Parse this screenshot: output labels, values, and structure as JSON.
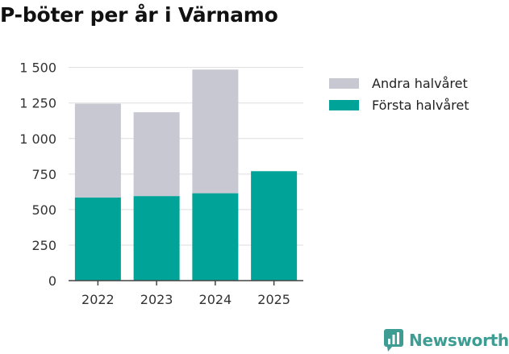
{
  "chart_data": {
    "type": "bar",
    "stacked": true,
    "title": "P-böter per år i Värnamo",
    "xlabel": "",
    "ylabel": "",
    "categories": [
      "2022",
      "2023",
      "2024",
      "2025"
    ],
    "series": [
      {
        "name": "Första halvåret",
        "color": "#00a398",
        "values": [
          585,
          595,
          615,
          770
        ]
      },
      {
        "name": "Andra halvåret",
        "color": "#c8c8d2",
        "values": [
          660,
          590,
          870,
          null
        ]
      }
    ],
    "ylim": [
      0,
      1600
    ],
    "yticks": [
      0,
      250,
      500,
      750,
      1000,
      1250,
      1500
    ],
    "ytick_labels": [
      "0",
      "250",
      "500",
      "750",
      "1 000",
      "1 250",
      "1 500"
    ],
    "grid": true,
    "legend_position": "right"
  },
  "legend": {
    "items": [
      {
        "label": "Andra halvåret",
        "color": "#c8c8d2"
      },
      {
        "label": "Första halvåret",
        "color": "#00a398"
      }
    ]
  },
  "brand": {
    "name": "Newsworthy",
    "icon": "bar-chart-icon",
    "color": "#3e9d93"
  }
}
